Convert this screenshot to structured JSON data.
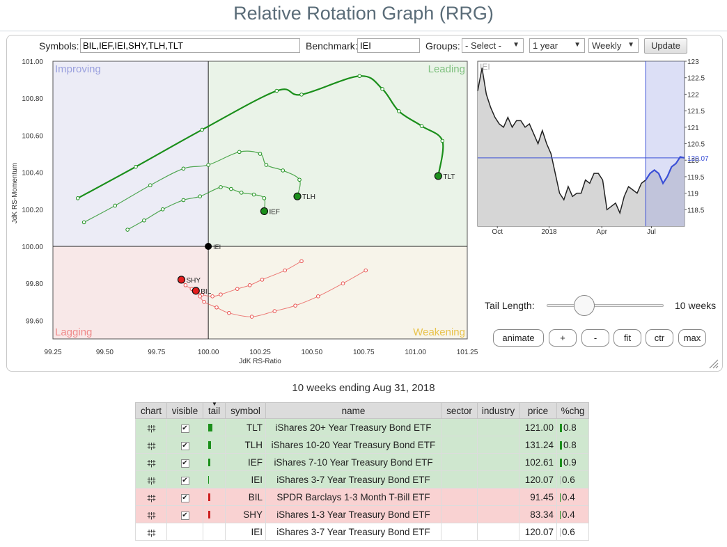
{
  "header": {
    "title": "Relative Rotation Graph (RRG)"
  },
  "controls": {
    "symbols_label": "Symbols:",
    "symbols_value": "BIL,IEF,IEI,SHY,TLH,TLT",
    "benchmark_label": "Benchmark:",
    "benchmark_value": "IEI",
    "groups_label": "Groups:",
    "groups_value": "- Select -",
    "period_value": "1 year",
    "interval_value": "Weekly",
    "update_label": "Update"
  },
  "colors": {
    "leading": "#1b8f1b",
    "lagging": "#e8514f",
    "leading_bg": "#eaf3e8",
    "improving_bg": "#ececf6",
    "lagging_bg": "#f8e8e8",
    "weakening_bg": "#f7f4ea",
    "price_line": "#222222",
    "price_highlight": "#3a4fd6"
  },
  "chart_data": [
    {
      "type": "scatter",
      "title": "",
      "xlabel": "JdK RS-Ratio",
      "ylabel": "JdK RS-Momentum",
      "xlim": [
        99.25,
        101.25
      ],
      "ylim": [
        99.5,
        101.0
      ],
      "x_ticks": [
        "99.25",
        "99.50",
        "99.75",
        "100.00",
        "100.25",
        "100.50",
        "100.75",
        "101.00",
        "101.25"
      ],
      "y_ticks": [
        "101.00",
        "100.80",
        "100.60",
        "100.40",
        "100.20",
        "100.00",
        "99.80",
        "99.60"
      ],
      "quadrants": {
        "improving": "Improving",
        "leading": "Leading",
        "lagging": "Lagging",
        "weakening": "Weakening"
      },
      "benchmark": {
        "name": "IEI",
        "x": 100.0,
        "y": 100.0
      },
      "series": [
        {
          "name": "TLT",
          "color": "leading",
          "head_color": "#1b8f1b",
          "points": [
            [
              99.37,
              100.26
            ],
            [
              99.65,
              100.43
            ],
            [
              99.97,
              100.63
            ],
            [
              100.33,
              100.84
            ],
            [
              100.45,
              100.82
            ],
            [
              100.73,
              100.92
            ],
            [
              100.84,
              100.85
            ],
            [
              100.92,
              100.73
            ],
            [
              101.03,
              100.65
            ],
            [
              101.13,
              100.57
            ],
            [
              101.11,
              100.38
            ]
          ]
        },
        {
          "name": "TLH",
          "color": "leading",
          "head_color": "#1b8f1b",
          "points": [
            [
              99.4,
              100.13
            ],
            [
              99.55,
              100.22
            ],
            [
              99.72,
              100.33
            ],
            [
              99.88,
              100.42
            ],
            [
              100.0,
              100.44
            ],
            [
              100.15,
              100.51
            ],
            [
              100.25,
              100.5
            ],
            [
              100.28,
              100.44
            ],
            [
              100.36,
              100.41
            ],
            [
              100.44,
              100.36
            ],
            [
              100.43,
              100.27
            ]
          ]
        },
        {
          "name": "IEF",
          "color": "leading",
          "head_color": "#1b8f1b",
          "points": [
            [
              99.61,
              100.09
            ],
            [
              99.69,
              100.14
            ],
            [
              99.78,
              100.2
            ],
            [
              99.88,
              100.25
            ],
            [
              99.96,
              100.27
            ],
            [
              100.06,
              100.32
            ],
            [
              100.11,
              100.31
            ],
            [
              100.16,
              100.29
            ],
            [
              100.22,
              100.28
            ],
            [
              100.27,
              100.26
            ],
            [
              100.27,
              100.19
            ]
          ]
        },
        {
          "name": "SHY",
          "color": "lagging",
          "head_color": "#e31e1e",
          "points": [
            [
              100.45,
              99.92
            ],
            [
              100.37,
              99.87
            ],
            [
              100.26,
              99.82
            ],
            [
              100.2,
              99.79
            ],
            [
              100.14,
              99.77
            ],
            [
              100.06,
              99.74
            ],
            [
              100.02,
              99.73
            ],
            [
              99.97,
              99.74
            ],
            [
              99.92,
              99.77
            ],
            [
              99.89,
              99.79
            ],
            [
              99.87,
              99.82
            ]
          ]
        },
        {
          "name": "BIL",
          "color": "lagging",
          "head_color": "#e31e1e",
          "points": [
            [
              100.76,
              99.87
            ],
            [
              100.65,
              99.8
            ],
            [
              100.53,
              99.73
            ],
            [
              100.42,
              99.68
            ],
            [
              100.32,
              99.65
            ],
            [
              100.21,
              99.62
            ],
            [
              100.1,
              99.64
            ],
            [
              100.04,
              99.67
            ],
            [
              99.98,
              99.7
            ],
            [
              99.96,
              99.73
            ],
            [
              99.94,
              99.76
            ]
          ]
        }
      ]
    },
    {
      "type": "line",
      "title": "IEI",
      "x_ticks": [
        "Oct",
        "2018",
        "Apr",
        "Jul"
      ],
      "y_ticks": [
        "123",
        "122.5",
        "122",
        "121.5",
        "121",
        "120.5",
        "120",
        "119.5",
        "119",
        "118.5"
      ],
      "ylim": [
        118.0,
        123.0
      ],
      "last_value_label": "120.07",
      "values": [
        122.1,
        122.8,
        122.0,
        121.6,
        121.3,
        121.1,
        121.0,
        121.3,
        121.0,
        121.2,
        121.2,
        121.0,
        121.1,
        120.8,
        120.5,
        120.9,
        120.5,
        120.2,
        119.6,
        119.0,
        118.8,
        119.2,
        118.9,
        119.0,
        119.0,
        119.4,
        119.3,
        119.6,
        119.6,
        119.4,
        118.5,
        118.6,
        118.7,
        118.4,
        118.9,
        119.2,
        119.1,
        119.0,
        119.3,
        119.4,
        119.6,
        119.7,
        119.6,
        119.3,
        119.5,
        119.8,
        119.9,
        120.1,
        120.07
      ],
      "highlight_start_index": 39
    }
  ],
  "tail_control": {
    "label": "Tail Length:",
    "value": "10 weeks",
    "fraction": 0.33
  },
  "buttons": [
    "animate",
    "+",
    "-",
    "fit",
    "ctr",
    "max"
  ],
  "table": {
    "caption": "10 weeks ending Aug 31, 2018",
    "headers": [
      "chart",
      "visible",
      "tail",
      "symbol",
      "name",
      "sector",
      "industry",
      "price",
      "%chg"
    ],
    "rows": [
      {
        "symbol": "TLT",
        "name": "iShares 20+ Year Treasury Bond ETF",
        "price": "121.00",
        "chg": "0.8",
        "visible": true,
        "bg": "#cfe7cf",
        "tail_color": "#1b8f1b",
        "tail_width": 6
      },
      {
        "symbol": "TLH",
        "name": "iShares 10-20 Year Treasury Bond ETF",
        "price": "131.24",
        "chg": "0.8",
        "visible": true,
        "bg": "#cfe7cf",
        "tail_color": "#1b8f1b",
        "tail_width": 4
      },
      {
        "symbol": "IEF",
        "name": "iShares 7-10 Year Treasury Bond ETF",
        "price": "102.61",
        "chg": "0.9",
        "visible": true,
        "bg": "#cfe7cf",
        "tail_color": "#1b8f1b",
        "tail_width": 3
      },
      {
        "symbol": "IEI",
        "name": "iShares 3-7 Year Treasury Bond ETF",
        "price": "120.07",
        "chg": "0.6",
        "visible": true,
        "bg": "#cfe7cf",
        "tail_color": "#1b8f1b",
        "tail_width": 1
      },
      {
        "symbol": "BIL",
        "name": "SPDR Barclays 1-3 Month T-Bill ETF",
        "price": "91.45",
        "chg": "0.4",
        "visible": true,
        "bg": "#f9d2d2",
        "tail_color": "#cc1f1f",
        "tail_width": 3
      },
      {
        "symbol": "SHY",
        "name": "iShares 1-3 Year Treasury Bond ETF",
        "price": "83.34",
        "chg": "0.4",
        "visible": true,
        "bg": "#f9d2d2",
        "tail_color": "#cc1f1f",
        "tail_width": 3
      },
      {
        "symbol": "IEI",
        "name": "iShares 3-7 Year Treasury Bond ETF",
        "price": "120.07",
        "chg": "0.6",
        "visible": false,
        "bg": "#ffffff",
        "tail_color": "",
        "tail_width": 0
      }
    ]
  }
}
